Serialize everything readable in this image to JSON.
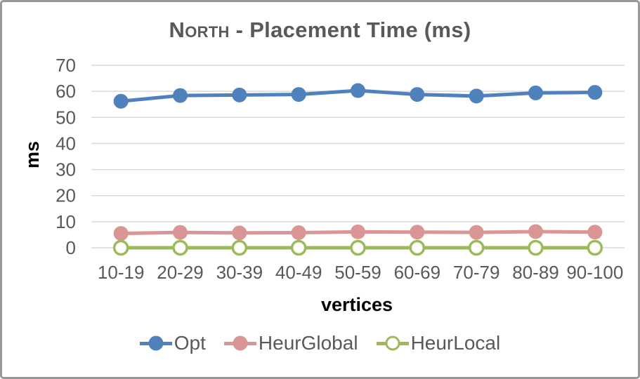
{
  "title": {
    "smallcaps_word": "North",
    "rest": " - Placement Time (ms)",
    "color": "#595959"
  },
  "chart_data": {
    "type": "line",
    "title": "North - Placement Time (ms)",
    "xlabel": "vertices",
    "ylabel": "ms",
    "ylim": [
      0,
      70
    ],
    "yticks": [
      0,
      10,
      20,
      30,
      40,
      50,
      60,
      70
    ],
    "grid": "horizontal",
    "legend_position": "bottom",
    "categories": [
      "10-19",
      "20-29",
      "30-39",
      "40-49",
      "50-59",
      "60-69",
      "70-79",
      "80-89",
      "90-100"
    ],
    "series": [
      {
        "name": "Opt",
        "color": "#4F81BD",
        "marker": "filled-circle",
        "values": [
          56.2,
          58.4,
          58.6,
          58.8,
          60.3,
          58.8,
          58.2,
          59.4,
          59.6
        ]
      },
      {
        "name": "HeurGlobal",
        "color": "#D99694",
        "marker": "filled-circle",
        "values": [
          5.5,
          5.9,
          5.7,
          5.8,
          6.1,
          6.0,
          5.9,
          6.2,
          6.0
        ]
      },
      {
        "name": "HeurLocal",
        "color": "#9BBB59",
        "marker": "open-circle",
        "values": [
          0,
          0,
          0,
          0,
          0,
          0,
          0,
          0,
          0
        ]
      }
    ],
    "colors": {
      "tick_label": "#595959",
      "gridline": "#D9D9D9",
      "axis_title": "#000000",
      "frame_border": "#989898"
    }
  }
}
